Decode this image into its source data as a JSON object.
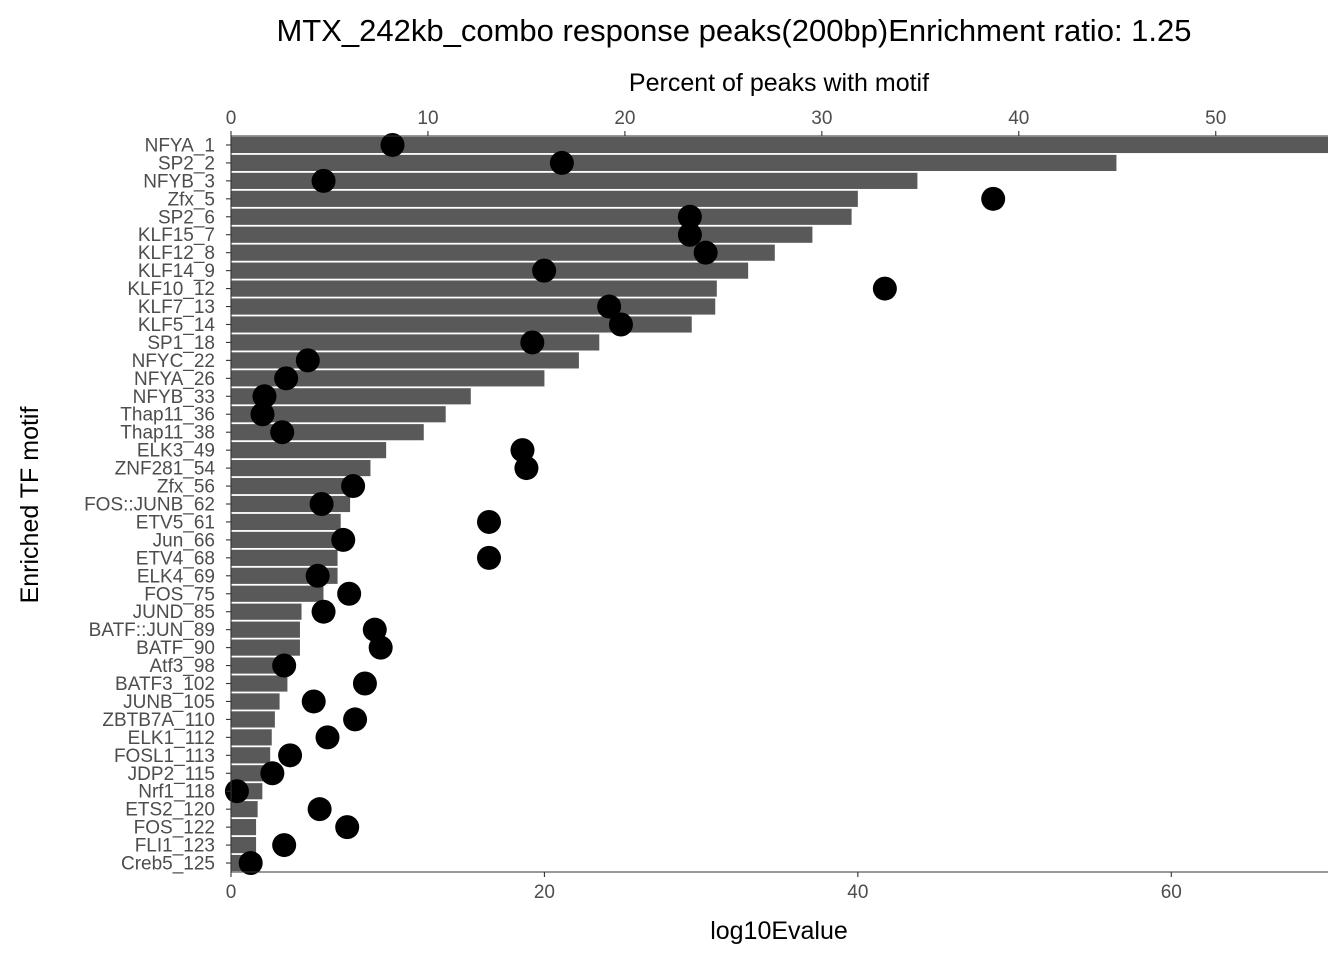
{
  "chart_data": {
    "type": "bar",
    "title": "MTX_242kb_combo response peaks(200bp)Enrichment ratio: 1.25",
    "xlabel": "log10Evalue",
    "ylabel": "Enriched TF motif",
    "x2label": "Percent of peaks with motif",
    "xlim": [
      0,
      70
    ],
    "x2lim": [
      0,
      55.7
    ],
    "xticks": [
      "0",
      "20",
      "40",
      "60"
    ],
    "xtick_values": [
      0,
      20,
      40,
      60
    ],
    "x2ticks": [
      "0",
      "10",
      "20",
      "30",
      "40",
      "50"
    ],
    "x2tick_values": [
      0,
      10,
      20,
      30,
      40,
      50
    ],
    "grid": false,
    "colors": {
      "bar": "#595959",
      "point": "#000000",
      "axis": "#333333",
      "text": "#4d4d4d"
    },
    "categories": [
      "NFYA_1",
      "SP2_2",
      "NFYB_3",
      "Zfx_5",
      "SP2_6",
      "KLF15_7",
      "KLF12_8",
      "KLF14_9",
      "KLF10_12",
      "KLF7_13",
      "KLF5_14",
      "SP1_18",
      "NFYC_22",
      "NFYA_26",
      "NFYB_33",
      "Thap11_36",
      "Thap11_38",
      "ELK3_49",
      "ZNF281_54",
      "Zfx_56",
      "FOS::JUNB_62",
      "ETV5_61",
      "Jun_66",
      "ETV4_68",
      "ELK4_69",
      "FOS_75",
      "JUND_85",
      "BATF::JUN_89",
      "BATF_90",
      "Atf3_98",
      "BATF3_102",
      "JUNB_105",
      "ZBTB7A_110",
      "ELK1_112",
      "FOSL1_113",
      "JDP2_115",
      "Nrf1_118",
      "ETS2_120",
      "FOS_122",
      "FLI1_123",
      "Creb5_125"
    ],
    "series": [
      {
        "name": "log10Evalue",
        "type": "bar",
        "axis": "bottom",
        "values": [
          70.0,
          56.5,
          43.8,
          40.0,
          39.6,
          37.1,
          34.7,
          33.0,
          31.0,
          30.9,
          29.4,
          23.5,
          22.2,
          20.0,
          15.3,
          13.7,
          12.3,
          9.9,
          8.9,
          7.6,
          7.6,
          7.0,
          6.9,
          6.8,
          6.8,
          5.9,
          4.5,
          4.4,
          4.4,
          3.8,
          3.6,
          3.1,
          2.8,
          2.6,
          2.5,
          2.4,
          2.0,
          1.7,
          1.6,
          1.6,
          1.1
        ]
      },
      {
        "name": "Percent of peaks with motif",
        "type": "scatter",
        "axis": "top",
        "values": [
          8.2,
          16.8,
          4.7,
          38.7,
          23.3,
          23.3,
          24.1,
          15.9,
          33.2,
          19.2,
          19.8,
          15.3,
          3.9,
          2.8,
          1.7,
          1.6,
          2.6,
          14.8,
          15.0,
          6.2,
          4.6,
          13.1,
          5.7,
          13.1,
          4.4,
          6.0,
          4.7,
          7.3,
          7.6,
          2.7,
          6.8,
          4.2,
          6.3,
          4.9,
          3.0,
          2.1,
          0.3,
          4.5,
          5.9,
          2.7,
          1.0
        ]
      }
    ]
  }
}
